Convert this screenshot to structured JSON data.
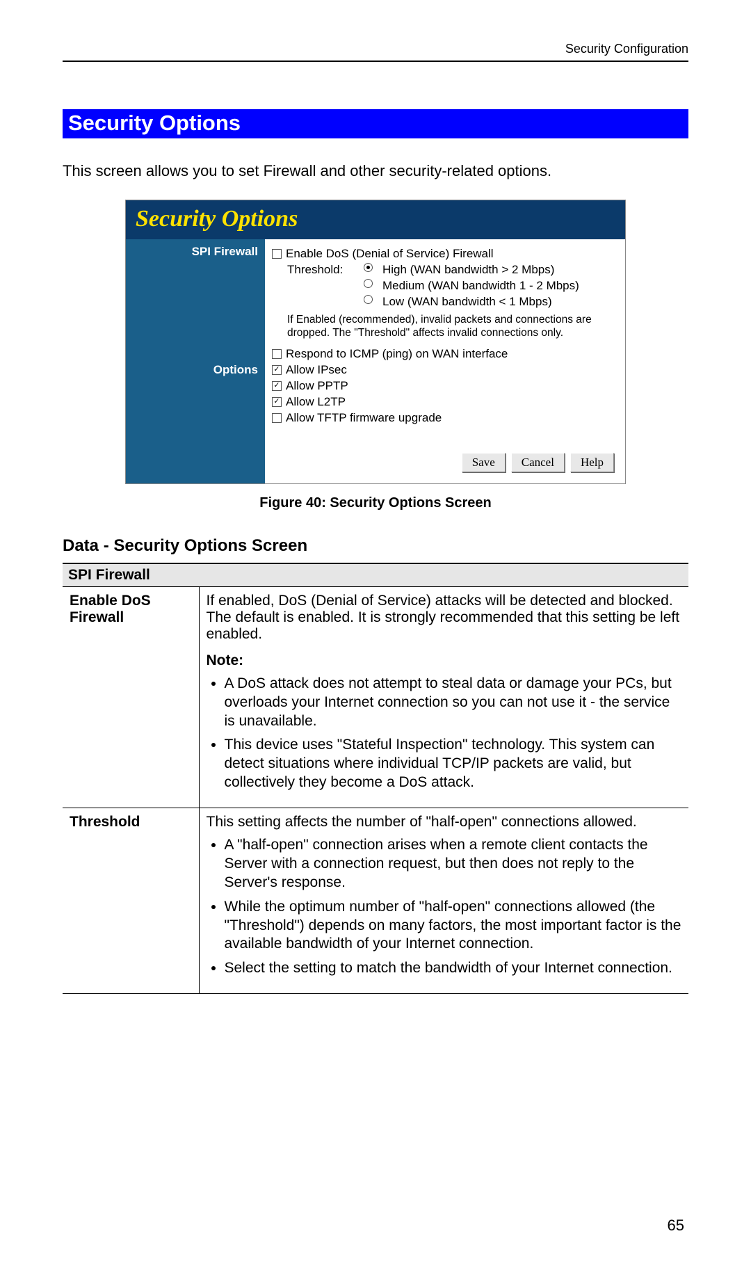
{
  "header": {
    "category": "Security Configuration"
  },
  "section": {
    "title": "Security Options"
  },
  "intro": "This screen allows you to set Firewall and other security-related options.",
  "screenshot": {
    "title": "Security Options",
    "colors": {
      "titlebar_bg": "#0b3a6a",
      "title_text": "#ffe200",
      "sidebar_bg": "#1a5f8a",
      "sidebar_text": "#ffffff",
      "panel_bg": "#ffffff"
    },
    "sidebar": {
      "label1": "SPI Firewall",
      "label2": "Options"
    },
    "firewall": {
      "enable_dos": {
        "label": "Enable DoS (Denial of Service) Firewall",
        "checked": false
      },
      "threshold_label": "Threshold:",
      "threshold_options": [
        {
          "label": "High (WAN bandwidth > 2 Mbps)",
          "selected": true
        },
        {
          "label": "Medium (WAN bandwidth 1 - 2 Mbps)",
          "selected": false
        },
        {
          "label": "Low (WAN bandwidth < 1 Mbps)",
          "selected": false
        }
      ],
      "help": "If Enabled (recommended), invalid packets and connections are dropped. The \"Threshold\" affects invalid connections only."
    },
    "options": [
      {
        "label": "Respond to ICMP (ping) on WAN interface",
        "checked": false
      },
      {
        "label": "Allow IPsec",
        "checked": true
      },
      {
        "label": "Allow PPTP",
        "checked": true
      },
      {
        "label": "Allow L2TP",
        "checked": true
      },
      {
        "label": "Allow TFTP firmware upgrade",
        "checked": false
      }
    ],
    "buttons": {
      "save": "Save",
      "cancel": "Cancel",
      "help": "Help"
    }
  },
  "figure_caption": "Figure 40: Security Options Screen",
  "data_heading": "Data - Security Options Screen",
  "table": {
    "header1": "SPI Firewall",
    "row1": {
      "name": "Enable DoS Firewall",
      "desc": "If enabled, DoS (Denial of Service) attacks will be detected and blocked. The default is enabled. It is strongly recommended that this setting be left enabled.",
      "note_label": "Note:",
      "bullets": [
        "A DoS attack does not attempt to steal data or damage your PCs, but overloads your Internet connection so you can not use it - the service is unavailable.",
        "This device uses \"Stateful Inspection\" technology. This system can detect situations where individual TCP/IP packets are valid, but collectively they become a DoS attack."
      ]
    },
    "row2": {
      "name": "Threshold",
      "desc": "This setting affects the number of \"half-open\" connections allowed.",
      "bullets": [
        "A \"half-open\" connection arises when a remote client contacts the Server with a connection request, but then does not reply to the Server's response.",
        "While the optimum number of \"half-open\" connections allowed (the \"Threshold\") depends on many factors, the most important factor is the available bandwidth of your Internet connection.",
        "Select the setting to match the bandwidth of your Internet connection."
      ]
    }
  },
  "page_number": "65"
}
